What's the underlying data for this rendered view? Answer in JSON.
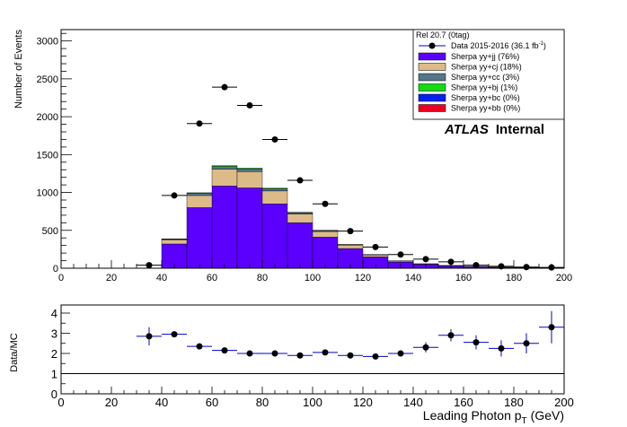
{
  "chart_data": [
    {
      "type": "bar",
      "subtype": "stacked-histogram-with-data-points",
      "ylabel": "Number of Events",
      "xlim": [
        0,
        200
      ],
      "ylim": [
        0,
        3150
      ],
      "x_ticks": [
        "0",
        "20",
        "40",
        "60",
        "80",
        "100",
        "120",
        "140",
        "160",
        "180",
        "200"
      ],
      "y_ticks": [
        "0",
        "500",
        "1000",
        "1500",
        "2000",
        "2500",
        "3000"
      ],
      "bin_edges": [
        0,
        10,
        20,
        30,
        40,
        50,
        60,
        70,
        80,
        90,
        100,
        110,
        120,
        130,
        140,
        150,
        160,
        170,
        180,
        190,
        200
      ],
      "legend": {
        "position": "top-right",
        "header": "Rel 20.7 (0tag)",
        "data_label": "Data 2015-2016 (36.1 fb",
        "data_label_sup": "-1",
        "data_label_end": ")"
      },
      "annotation": {
        "atlas": "ATLAS",
        "status": "Internal"
      },
      "series": [
        {
          "name": "Sherpa yy+jj (76%)",
          "color": "#5b00ff",
          "values": [
            0,
            0,
            0,
            0,
            320,
            800,
            1085,
            1060,
            850,
            600,
            410,
            260,
            150,
            80,
            50,
            30,
            20,
            12,
            8,
            5
          ]
        },
        {
          "name": "Sherpa yy+cj (18%)",
          "color": "#ddbb88",
          "values": [
            0,
            0,
            0,
            0,
            55,
            160,
            220,
            215,
            170,
            115,
            75,
            45,
            25,
            14,
            8,
            5,
            3,
            2,
            1,
            1
          ]
        },
        {
          "name": "Sherpa yy+cc (3%)",
          "color": "#557788",
          "values": [
            0,
            0,
            0,
            0,
            10,
            28,
            38,
            36,
            28,
            18,
            12,
            7,
            4,
            2,
            1,
            1,
            1,
            0,
            0,
            0
          ]
        },
        {
          "name": "Sherpa yy+bj (1%)",
          "color": "#11dd11",
          "values": [
            0,
            0,
            0,
            0,
            3,
            8,
            11,
            10,
            8,
            5,
            3,
            2,
            1,
            1,
            0,
            0,
            0,
            0,
            0,
            0
          ]
        },
        {
          "name": "Sherpa yy+bc (0%)",
          "color": "#0022ee",
          "values": [
            0,
            0,
            0,
            0,
            0,
            0,
            0,
            0,
            0,
            0,
            0,
            0,
            0,
            0,
            0,
            0,
            0,
            0,
            0,
            0
          ]
        },
        {
          "name": "Sherpa yy+bb (0%)",
          "color": "#ee0022",
          "values": [
            0,
            0,
            0,
            0,
            0,
            0,
            0,
            0,
            0,
            0,
            0,
            0,
            0,
            0,
            0,
            0,
            0,
            0,
            0,
            0
          ]
        }
      ],
      "data_points": {
        "x": [
          35,
          45,
          55,
          65,
          75,
          85,
          95,
          105,
          115,
          125,
          135,
          145,
          155,
          165,
          175,
          185,
          195
        ],
        "y": [
          40,
          960,
          1910,
          2390,
          2150,
          1700,
          1160,
          850,
          490,
          280,
          180,
          120,
          85,
          40,
          25,
          15,
          10
        ]
      }
    },
    {
      "type": "scatter",
      "subtype": "ratio",
      "ylabel": "Data/MC",
      "xlabel": "Leading Photon p",
      "xlabel_sub": "T",
      "xlabel_unit": "(GeV)",
      "xlim": [
        0,
        200
      ],
      "ylim": [
        0,
        4.4
      ],
      "x_ticks": [
        "0",
        "20",
        "40",
        "60",
        "80",
        "100",
        "120",
        "140",
        "160",
        "180",
        "200"
      ],
      "y_ticks": [
        "0",
        "1",
        "2",
        "3",
        "4"
      ],
      "reference_line": 1,
      "points": {
        "x": [
          35,
          45,
          55,
          65,
          75,
          85,
          95,
          105,
          115,
          125,
          135,
          145,
          155,
          165,
          175,
          185,
          195
        ],
        "y": [
          2.85,
          2.95,
          2.35,
          2.15,
          2.0,
          2.0,
          1.9,
          2.05,
          1.9,
          1.85,
          2.0,
          2.3,
          2.9,
          2.55,
          2.25,
          2.5,
          3.3
        ],
        "yerr": [
          0.45,
          0.12,
          0.1,
          0.08,
          0.08,
          0.08,
          0.08,
          0.1,
          0.12,
          0.12,
          0.15,
          0.25,
          0.3,
          0.35,
          0.4,
          0.5,
          0.8
        ]
      }
    }
  ]
}
